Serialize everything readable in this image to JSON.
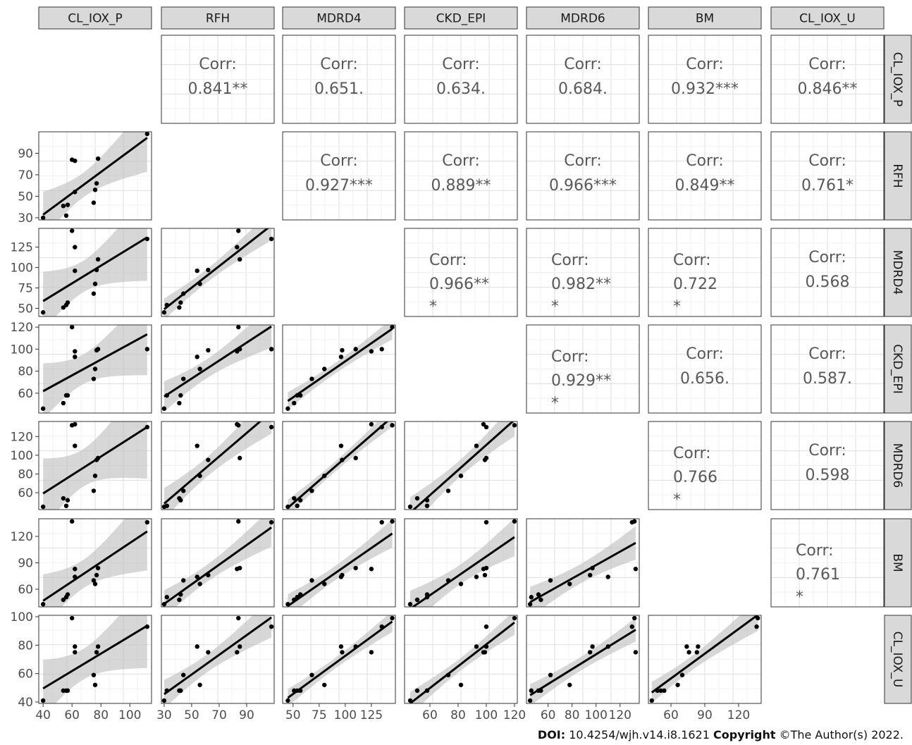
{
  "variables": [
    "CL_IOX_P",
    "RFH",
    "MDRD4",
    "MDRD6",
    "CKD_EPI",
    "BM",
    "CL_IOX_U"
  ],
  "chart_data": {
    "type": "scatter",
    "variables": [
      "CL_IOX_P",
      "RFH",
      "MDRD4",
      "CKD_EPI",
      "MDRD6",
      "BM",
      "CL_IOX_U"
    ],
    "points": {
      "CL_IOX_P": [
        40,
        54,
        56,
        57,
        60,
        62,
        62,
        75,
        76,
        77,
        78,
        112
      ],
      "RFH": [
        30,
        41,
        32,
        42,
        84,
        83,
        54,
        44,
        56,
        62,
        85,
        108
      ],
      "MDRD4": [
        45,
        51,
        54,
        57,
        145,
        125,
        96,
        68,
        80,
        97,
        110,
        135
      ],
      "CKD_EPI": [
        46,
        51,
        58,
        58,
        120,
        98,
        93,
        73,
        82,
        99,
        100,
        100
      ],
      "MDRD6": [
        45,
        54,
        46,
        52,
        132,
        133,
        110,
        62,
        78,
        95,
        97,
        130
      ],
      "BM": [
        43,
        48,
        51,
        54,
        137,
        83,
        74,
        70,
        66,
        76,
        84,
        136
      ],
      "CL_IOX_U": [
        41,
        48,
        48,
        48,
        99,
        75,
        79,
        59,
        52,
        75,
        79,
        93
      ]
    },
    "axes": {
      "CL_IOX_P": {
        "range": [
          37,
          115
        ],
        "ticks": [
          40,
          60,
          80,
          100
        ]
      },
      "RFH": {
        "range": [
          28,
          110
        ],
        "ticks": [
          30,
          50,
          70,
          90
        ]
      },
      "MDRD4": {
        "range": [
          40,
          148
        ],
        "ticks": [
          50,
          75,
          100,
          125
        ]
      },
      "CKD_EPI": {
        "range": [
          42,
          122
        ],
        "ticks": [
          60,
          80,
          100,
          120
        ]
      },
      "MDRD6": {
        "range": [
          42,
          136
        ],
        "ticks": [
          60,
          80,
          100,
          120
        ]
      },
      "BM": {
        "range": [
          40,
          140
        ],
        "ticks": [
          60,
          90,
          120
        ]
      },
      "CL_IOX_U": {
        "range": [
          39,
          101
        ],
        "ticks": [
          40,
          60,
          80,
          100
        ]
      }
    },
    "correlations": [
      {
        "row": "CL_IOX_P",
        "col": "RFH",
        "label": "Corr:",
        "value": "0.841**"
      },
      {
        "row": "CL_IOX_P",
        "col": "MDRD4",
        "label": "Corr:",
        "value": "0.651."
      },
      {
        "row": "CL_IOX_P",
        "col": "CKD_EPI",
        "label": "Corr:",
        "value": "0.634."
      },
      {
        "row": "CL_IOX_P",
        "col": "MDRD6",
        "label": "Corr:",
        "value": "0.684."
      },
      {
        "row": "CL_IOX_P",
        "col": "BM",
        "label": "Corr:",
        "value": "0.932***"
      },
      {
        "row": "CL_IOX_P",
        "col": "CL_IOX_U",
        "label": "Corr:",
        "value": "0.846**"
      },
      {
        "row": "RFH",
        "col": "MDRD4",
        "label": "Corr:",
        "value": "0.927***"
      },
      {
        "row": "RFH",
        "col": "CKD_EPI",
        "label": "Corr:",
        "value": "0.889**"
      },
      {
        "row": "RFH",
        "col": "MDRD6",
        "label": "Corr:",
        "value": "0.966***"
      },
      {
        "row": "RFH",
        "col": "BM",
        "label": "Corr:",
        "value": "0.849**"
      },
      {
        "row": "RFH",
        "col": "CL_IOX_U",
        "label": "Corr:",
        "value": "0.761*"
      },
      {
        "row": "MDRD4",
        "col": "CKD_EPI",
        "label": "Corr:",
        "value": "0.966**",
        "extra": "*"
      },
      {
        "row": "MDRD4",
        "col": "MDRD6",
        "label": "Corr:",
        "value": "0.982**",
        "extra": "*"
      },
      {
        "row": "MDRD4",
        "col": "BM",
        "label": "Corr:",
        "value": "0.722",
        "extra": "*"
      },
      {
        "row": "MDRD4",
        "col": "CL_IOX_U",
        "label": "Corr:",
        "value": "0.568"
      },
      {
        "row": "CKD_EPI",
        "col": "MDRD6",
        "label": "Corr:",
        "value": "0.929**",
        "extra": "*"
      },
      {
        "row": "CKD_EPI",
        "col": "BM",
        "label": "Corr:",
        "value": "0.656."
      },
      {
        "row": "CKD_EPI",
        "col": "CL_IOX_U",
        "label": "Corr:",
        "value": "0.587."
      },
      {
        "row": "MDRD6",
        "col": "BM",
        "label": "Corr:",
        "value": "0.766",
        "extra": "*"
      },
      {
        "row": "MDRD6",
        "col": "CL_IOX_U",
        "label": "Corr:",
        "value": "0.598"
      },
      {
        "row": "BM",
        "col": "CL_IOX_U",
        "label": "Corr:",
        "value": "0.761",
        "extra": "*"
      }
    ],
    "grid": true,
    "regression": "linear with confidence band"
  },
  "footer": {
    "doi_label": "DOI:",
    "doi_value": "10.4254/wjh.v14.i8.1621",
    "copyright_label": "Copyright",
    "copyright_value": "©The Author(s) 2022."
  }
}
